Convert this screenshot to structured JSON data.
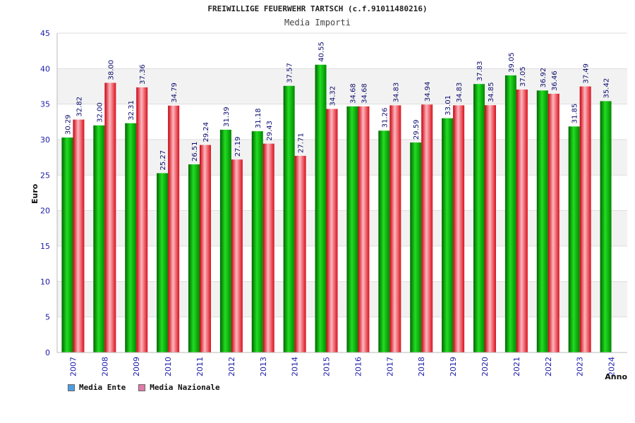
{
  "chart_data": {
    "type": "bar",
    "title": "FREIWILLIGE FEUERWEHR TARTSCH (c.f.91011480216)",
    "subtitle": "Media Importi",
    "xlabel": "Anno",
    "ylabel": "Euro",
    "ylim": [
      0,
      45
    ],
    "yticks": [
      0,
      5,
      10,
      15,
      20,
      25,
      30,
      35,
      40,
      45
    ],
    "grid": true,
    "legend_position": "bottom-left",
    "categories": [
      "2007",
      "2008",
      "2009",
      "2010",
      "2011",
      "2012",
      "2013",
      "2014",
      "2015",
      "2016",
      "2017",
      "2018",
      "2019",
      "2020",
      "2021",
      "2022",
      "2023",
      "2024"
    ],
    "series": [
      {
        "name": "Media Ente",
        "color": "#00aa00",
        "legend_color": "#4f9de0",
        "values": [
          30.29,
          32.0,
          32.31,
          25.27,
          26.51,
          31.39,
          31.18,
          37.57,
          40.55,
          34.68,
          31.26,
          29.59,
          33.01,
          37.83,
          39.05,
          36.92,
          31.85,
          35.42
        ],
        "labels": [
          "30.29",
          "32.00",
          "32.31",
          "25.27",
          "26.51",
          "31.39",
          "31.18",
          "37.57",
          "40.55",
          "34.68",
          "31.26",
          "29.59",
          "33.01",
          "37.83",
          "39.05",
          "36.92",
          "31.85",
          "35.42"
        ]
      },
      {
        "name": "Media Nazionale",
        "color": "#e0101e",
        "legend_color": "#e07aa8",
        "values": [
          32.82,
          38.0,
          37.36,
          34.79,
          29.24,
          27.19,
          29.43,
          27.71,
          34.32,
          34.68,
          34.83,
          34.94,
          34.83,
          34.85,
          37.05,
          36.46,
          37.49,
          null
        ],
        "labels": [
          "32.82",
          "38.00",
          "37.36",
          "34.79",
          "29.24",
          "27.19",
          "29.43",
          "27.71",
          "34.32",
          "34.68",
          "34.83",
          "34.94",
          "34.83",
          "34.85",
          "37.05",
          "36.46",
          "37.49",
          ""
        ]
      }
    ]
  }
}
